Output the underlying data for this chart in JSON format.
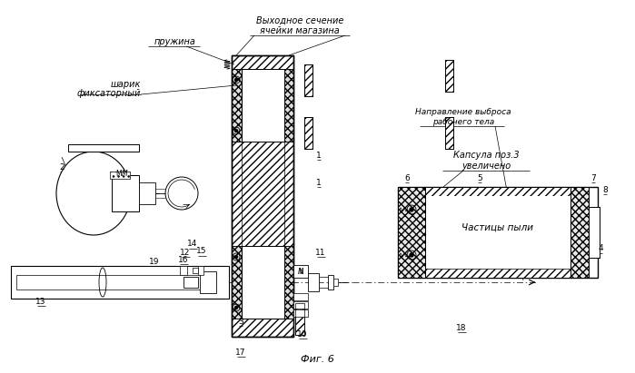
{
  "fig_label": "Фиг. 6",
  "bg_color": "#ffffff",
  "label_spring": "пружина",
  "label_ball": "шарик\nфиксаторный",
  "label_outlet": "Выходное сечение\nячейки магазина",
  "label_capsule_title": "Капсула поз.3",
  "label_capsule_sub": "увеличено",
  "label_dust": "Частицы пыли",
  "label_dir1": "Направление выброса",
  "label_dir2": "рабочего тела"
}
